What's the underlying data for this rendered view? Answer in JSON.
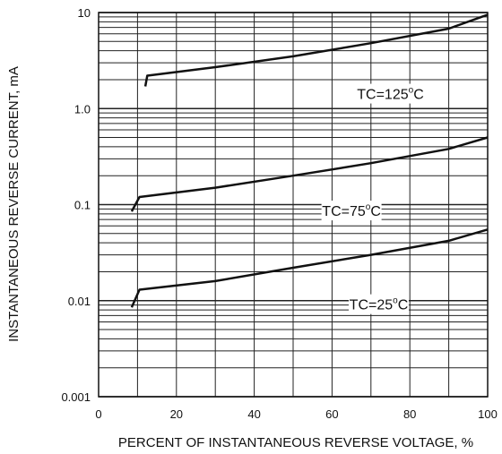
{
  "chart_data": {
    "type": "line",
    "title": "",
    "xlabel": "PERCENT OF INSTANTANEOUS REVERSE VOLTAGE, %",
    "ylabel": "INSTANTANEOUS REVERSE CURRENT, mA",
    "xlim": [
      0,
      100
    ],
    "ylim": [
      0.001,
      10
    ],
    "yscale": "log",
    "grid": true,
    "x_ticks": [
      "0",
      "20",
      "40",
      "60",
      "80",
      "100"
    ],
    "y_ticks": [
      "0.001",
      "0.01",
      "0.1",
      "1.0",
      "10"
    ],
    "series": [
      {
        "name": "TC=125°C",
        "label_main": "TC=125",
        "label_unit": "C",
        "x": [
          12,
          12.5,
          30,
          50,
          70,
          90,
          100
        ],
        "y": [
          1.7,
          2.2,
          2.7,
          3.5,
          4.8,
          6.8,
          9.5
        ]
      },
      {
        "name": "TC=75°C",
        "label_main": "TC=75",
        "label_unit": "C",
        "x": [
          8.5,
          10.5,
          30,
          50,
          70,
          90,
          100
        ],
        "y": [
          0.085,
          0.12,
          0.15,
          0.2,
          0.27,
          0.38,
          0.5
        ]
      },
      {
        "name": "TC=25°C",
        "label_main": "TC=25",
        "label_unit": "C",
        "x": [
          8.5,
          10.5,
          30,
          50,
          70,
          90,
          100
        ],
        "y": [
          0.0085,
          0.013,
          0.016,
          0.022,
          0.03,
          0.042,
          0.055
        ]
      }
    ]
  }
}
